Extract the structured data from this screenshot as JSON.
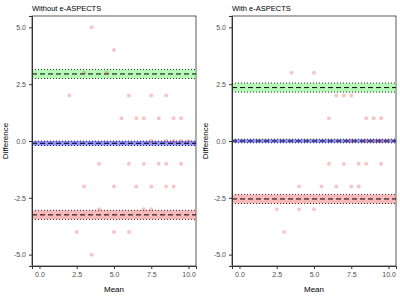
{
  "chart_data": [
    {
      "type": "scatter",
      "title": "Without e-ASPECTS",
      "x_label": "Mean",
      "y_label": "Difference",
      "xlim": [
        -0.5,
        10.5
      ],
      "ylim": [
        -5.5,
        5.5
      ],
      "xticks": [
        {
          "value": 0,
          "label": "0.0"
        },
        {
          "value": 2.5,
          "label": "2.5"
        },
        {
          "value": 5,
          "label": "5.0"
        },
        {
          "value": 7.5,
          "label": "7.5"
        },
        {
          "value": 10,
          "label": "10.0"
        }
      ],
      "yticks": [
        {
          "value": -5,
          "label": "-5.0"
        },
        {
          "value": -2.5,
          "label": "-2.5"
        },
        {
          "value": 0,
          "label": "0.0"
        },
        {
          "value": 2.5,
          "label": "2.5"
        },
        {
          "value": 5,
          "label": "5.0"
        }
      ],
      "grid": false,
      "x": [
        3.5,
        5,
        3,
        4.5,
        2,
        6,
        7.5,
        8.5,
        5.5,
        6.5,
        7,
        8,
        9,
        9.5,
        8.5,
        9,
        9.5,
        10,
        7.5,
        4,
        6,
        7,
        8,
        8.5,
        9.5,
        3,
        5,
        6.5,
        7.5,
        8.5,
        9,
        4,
        7,
        7.5,
        2.5,
        5,
        6,
        3.5
      ],
      "series": [
        {
          "color": "#e41a1c",
          "values": [
            5,
            4,
            3,
            3,
            2,
            2,
            2,
            2,
            1,
            1,
            1,
            1,
            1,
            1,
            0,
            0,
            0,
            0,
            0,
            -1,
            -1,
            -1,
            -1,
            -1,
            -1,
            -2,
            -2,
            -2,
            -2,
            -2,
            -2,
            -3,
            -3,
            -3,
            -4,
            -4,
            -4,
            -5
          ]
        }
      ],
      "reference_lines": [
        {
          "value": 2.95,
          "ci": [
            2.75,
            3.15
          ],
          "color": "#7cf07c"
        },
        {
          "value": -0.1,
          "ci": [
            -0.2,
            0.0
          ],
          "color": "#3333ff"
        },
        {
          "value": -3.25,
          "ci": [
            -3.45,
            -3.05
          ],
          "color": "#f08080"
        }
      ]
    },
    {
      "type": "scatter",
      "title": "With e-ASPECTS",
      "x_label": "Mean",
      "y_label": "Difference",
      "xlim": [
        -0.5,
        10.5
      ],
      "ylim": [
        -5.5,
        5.5
      ],
      "xticks": [
        {
          "value": 0,
          "label": "0.0"
        },
        {
          "value": 2.5,
          "label": "2.5"
        },
        {
          "value": 5,
          "label": "5.0"
        },
        {
          "value": 7.5,
          "label": "7.5"
        },
        {
          "value": 10,
          "label": "10.0"
        }
      ],
      "yticks": [
        {
          "value": -5,
          "label": "-5.0"
        },
        {
          "value": -2.5,
          "label": "-2.5"
        },
        {
          "value": 0,
          "label": "0.0"
        },
        {
          "value": 2.5,
          "label": "2.5"
        },
        {
          "value": 5,
          "label": "5.0"
        }
      ],
      "grid": false,
      "x": [
        3.5,
        5,
        6.5,
        7,
        7.5,
        9,
        8.5,
        6,
        9.5,
        9,
        9.5,
        10,
        8.5,
        7.5,
        6,
        7,
        8,
        8.5,
        9.5,
        4,
        5.5,
        6.5,
        7.5,
        8,
        2.5,
        4,
        5,
        3
      ],
      "series": [
        {
          "color": "#e41a1c",
          "values": [
            3,
            3,
            2,
            2,
            2,
            1,
            1,
            1,
            1,
            0,
            0,
            0,
            0,
            0,
            -1,
            -1,
            -1,
            -1,
            -1,
            -2,
            -2,
            -2,
            -2,
            -2,
            -3,
            -3,
            -3,
            -4
          ]
        }
      ],
      "reference_lines": [
        {
          "value": 2.35,
          "ci": [
            2.15,
            2.55
          ],
          "color": "#7cf07c"
        },
        {
          "value": 0.0,
          "ci": [
            -0.08,
            0.08
          ],
          "color": "#3333ff"
        },
        {
          "value": -2.55,
          "ci": [
            -2.75,
            -2.35
          ],
          "color": "#f08080"
        }
      ]
    }
  ]
}
